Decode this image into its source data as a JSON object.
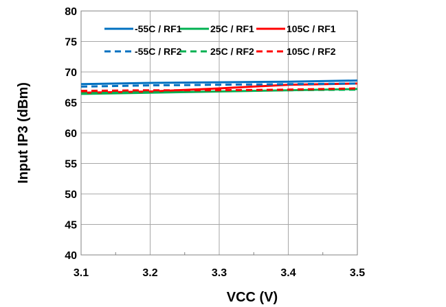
{
  "chart_data": {
    "type": "line",
    "title": "",
    "xlabel": "VCC (V)",
    "ylabel": "Input IP3 (dBm)",
    "xlim": [
      3.1,
      3.5
    ],
    "ylim": [
      40,
      80
    ],
    "x_ticks": [
      "3.1",
      "3.2",
      "3.3",
      "3.4",
      "3.5"
    ],
    "y_ticks": [
      "40",
      "45",
      "50",
      "55",
      "60",
      "65",
      "70",
      "75",
      "80"
    ],
    "grid": true,
    "legend_position": "top-inside",
    "series": [
      {
        "name": "-55C / RF1",
        "color": "#0070c0",
        "dash": "solid",
        "x": [
          3.1,
          3.2,
          3.3,
          3.4,
          3.5
        ],
        "y": [
          68.0,
          68.2,
          68.3,
          68.4,
          68.6
        ]
      },
      {
        "name": "25C / RF1",
        "color": "#00b050",
        "dash": "solid",
        "x": [
          3.1,
          3.2,
          3.3,
          3.4,
          3.5
        ],
        "y": [
          66.4,
          66.6,
          66.8,
          67.0,
          67.2
        ]
      },
      {
        "name": "105C / RF1",
        "color": "#ff0000",
        "dash": "solid",
        "x": [
          3.1,
          3.2,
          3.3,
          3.4,
          3.5
        ],
        "y": [
          66.6,
          66.8,
          67.3,
          67.9,
          68.1
        ]
      },
      {
        "name": "-55C / RF2",
        "color": "#0070c0",
        "dash": "dashed",
        "x": [
          3.1,
          3.2,
          3.3,
          3.4,
          3.5
        ],
        "y": [
          67.6,
          67.8,
          67.9,
          68.0,
          68.1
        ]
      },
      {
        "name": "25C / RF2",
        "color": "#00b050",
        "dash": "dashed",
        "x": [
          3.1,
          3.2,
          3.3,
          3.4,
          3.5
        ],
        "y": [
          66.5,
          66.7,
          66.9,
          67.0,
          67.1
        ]
      },
      {
        "name": "105C / RF2",
        "color": "#ff0000",
        "dash": "dashed",
        "x": [
          3.1,
          3.2,
          3.3,
          3.4,
          3.5
        ],
        "y": [
          66.9,
          67.0,
          67.0,
          67.1,
          67.3
        ]
      }
    ]
  }
}
